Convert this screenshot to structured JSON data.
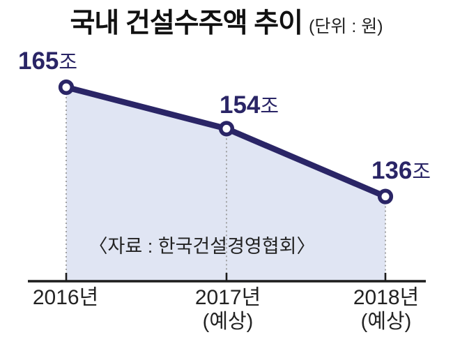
{
  "title": {
    "main": "국내 건설수주액 추이",
    "unit": "(단위 : 원)"
  },
  "source": "〈자료 : 한국건설경영협회〉",
  "colors": {
    "line": "#2a2566",
    "marker_fill": "#ffffff",
    "area_fill": "#e0e5f3",
    "axis": "#1c1c1c",
    "guide": "#999999",
    "value_label": "#2a2566",
    "text": "#222222"
  },
  "chart_data": {
    "type": "line",
    "title": "국내 건설수주액 추이",
    "unit": "원",
    "categories": [
      "2016년",
      "2017년 (예상)",
      "2018년 (예상)"
    ],
    "values": [
      165,
      154,
      136
    ],
    "value_labels": [
      "165조",
      "154조",
      "136조"
    ],
    "series": [
      {
        "name": "국내 건설수주액 (조 원)",
        "values": [
          165,
          154,
          136
        ]
      }
    ],
    "points": [
      {
        "x_label": "2016년",
        "x_sub": "",
        "value": "165",
        "suffix": "조"
      },
      {
        "x_label": "2017년",
        "x_sub": "(예상)",
        "value": "154",
        "suffix": "조"
      },
      {
        "x_label": "2018년",
        "x_sub": "(예상)",
        "value": "136",
        "suffix": "조"
      }
    ],
    "area_fill": true,
    "grid": false,
    "legend_position": "none",
    "xlabel": "",
    "ylabel": ""
  }
}
